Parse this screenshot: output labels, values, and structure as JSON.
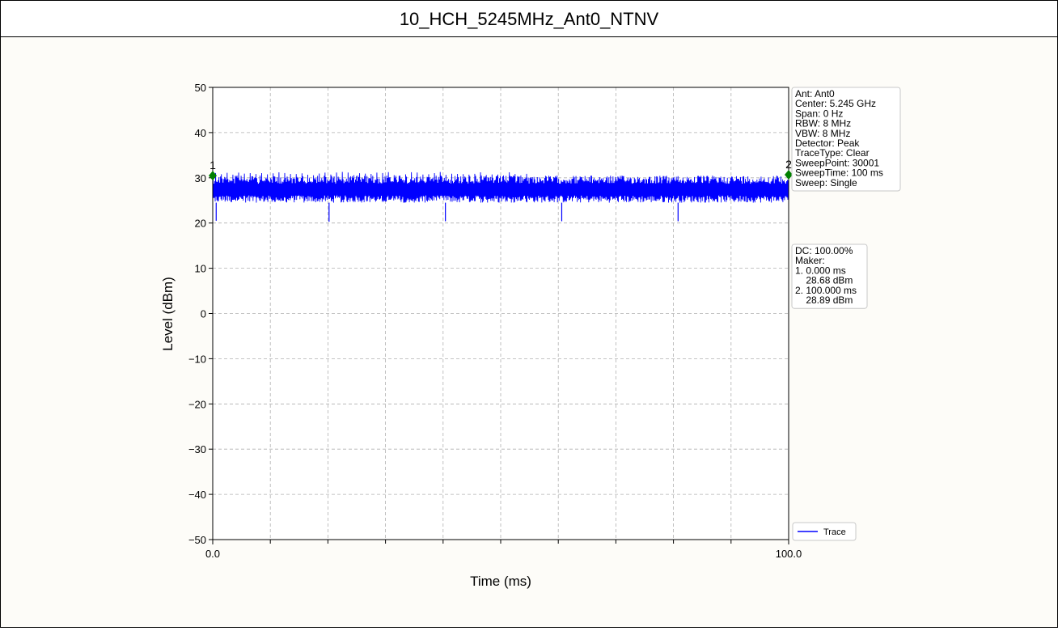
{
  "title": "10_HCH_5245MHz_Ant0_NTNV",
  "chart_data": {
    "type": "line",
    "xlabel": "Time (ms)",
    "ylabel": "Level (dBm)",
    "xlim": [
      0.0,
      100.0
    ],
    "ylim": [
      -50,
      50
    ],
    "x_ticks": [
      "0.0",
      "100.0"
    ],
    "y_ticks": [
      "50",
      "40",
      "30",
      "20",
      "10",
      "0",
      "−10",
      "−20",
      "−30",
      "−40",
      "−50"
    ],
    "y_tick_values": [
      50,
      40,
      30,
      20,
      10,
      0,
      -10,
      -20,
      -30,
      -40,
      -50
    ],
    "x_minor_ticks": [
      10,
      20,
      30,
      40,
      50,
      60,
      70,
      80,
      90
    ],
    "grid": true,
    "series": [
      {
        "name": "Trace",
        "color": "#0000ff",
        "band_low_dbm": 24.5,
        "band_high_dbm": 30.5,
        "mean_dbm": 27.5,
        "dips": [
          {
            "x": 0.6,
            "y": 20.5
          },
          {
            "x": 20.2,
            "y": 20.3
          },
          {
            "x": 40.4,
            "y": 20.4
          },
          {
            "x": 60.6,
            "y": 20.4
          },
          {
            "x": 80.8,
            "y": 20.4
          }
        ]
      }
    ],
    "markers": [
      {
        "label": "1",
        "x": 0.0,
        "y": 28.68,
        "color": "#008000"
      },
      {
        "label": "2",
        "x": 100.0,
        "y": 28.89,
        "color": "#008000"
      }
    ],
    "legend_position": "lower-right",
    "info_box": [
      "Ant: Ant0",
      "Center: 5.245 GHz",
      "Span: 0 Hz",
      "RBW: 8 MHz",
      "VBW: 8 MHz",
      "Detector: Peak",
      "TraceType: Clear",
      "SweepPoint: 30001",
      "SweepTime: 100 ms",
      "Sweep: Single"
    ],
    "marker_box": [
      "DC: 100.00%",
      "Maker:",
      "1. 0.000 ms",
      "    28.68 dBm",
      "2. 100.000 ms",
      "    28.89 dBm"
    ]
  }
}
